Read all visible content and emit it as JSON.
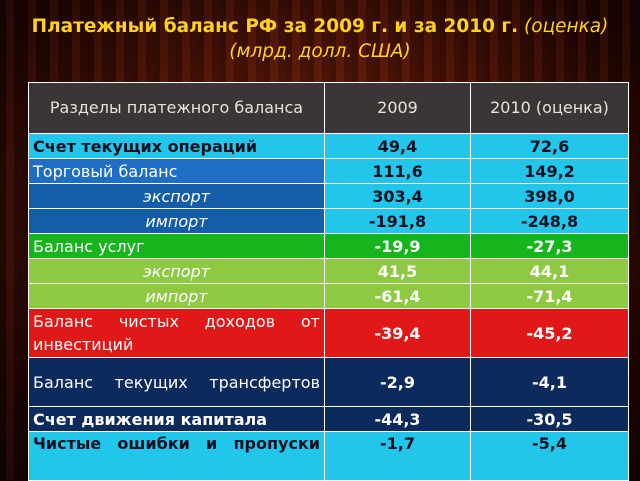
{
  "title": {
    "main": "Платежный баланс РФ за 2009 г. и за 2010 г.",
    "note": "(оценка)",
    "units": "(млрд. долл. США)"
  },
  "table": {
    "headers": [
      "Разделы платежного баланса",
      "2009",
      "2010 (оценка)"
    ],
    "rows": [
      {
        "label": "Счет текущих операций",
        "v2009": "49,4",
        "v2010": "72,6"
      },
      {
        "label": "Торговый баланс",
        "v2009": "111,6",
        "v2010": "149,2"
      },
      {
        "label": "экспорт",
        "v2009": "303,4",
        "v2010": "398,0"
      },
      {
        "label": "импорт",
        "v2009": "-191,8",
        "v2010": "-248,8"
      },
      {
        "label": "Баланс услуг",
        "v2009": "-19,9",
        "v2010": "-27,3"
      },
      {
        "label": "экспорт",
        "v2009": "41,5",
        "v2010": "44,1"
      },
      {
        "label": "импорт",
        "v2009": "-61,4",
        "v2010": "-71,4"
      },
      {
        "label": "Баланс чистых доходов от инвестиций",
        "v2009": "-39,4",
        "v2010": "-45,2"
      },
      {
        "label": "Баланс текущих трансфертов",
        "v2009": "-2,9",
        "v2010": "-4,1"
      },
      {
        "label": "Счет движения капитала",
        "v2009": "-44,3",
        "v2010": "-30,5"
      },
      {
        "label": "Чистые ошибки и пропуски",
        "v2009": "-1,7",
        "v2010": "-5,4"
      }
    ]
  },
  "colors": {
    "title": "#ffd21f",
    "header": "#3b3536",
    "cyan": "#22c6ea",
    "blue": "#1e6fc4",
    "green": "#16b51e",
    "light_green": "#8fc943",
    "red": "#e11818",
    "navy": "#0c2a5c"
  }
}
